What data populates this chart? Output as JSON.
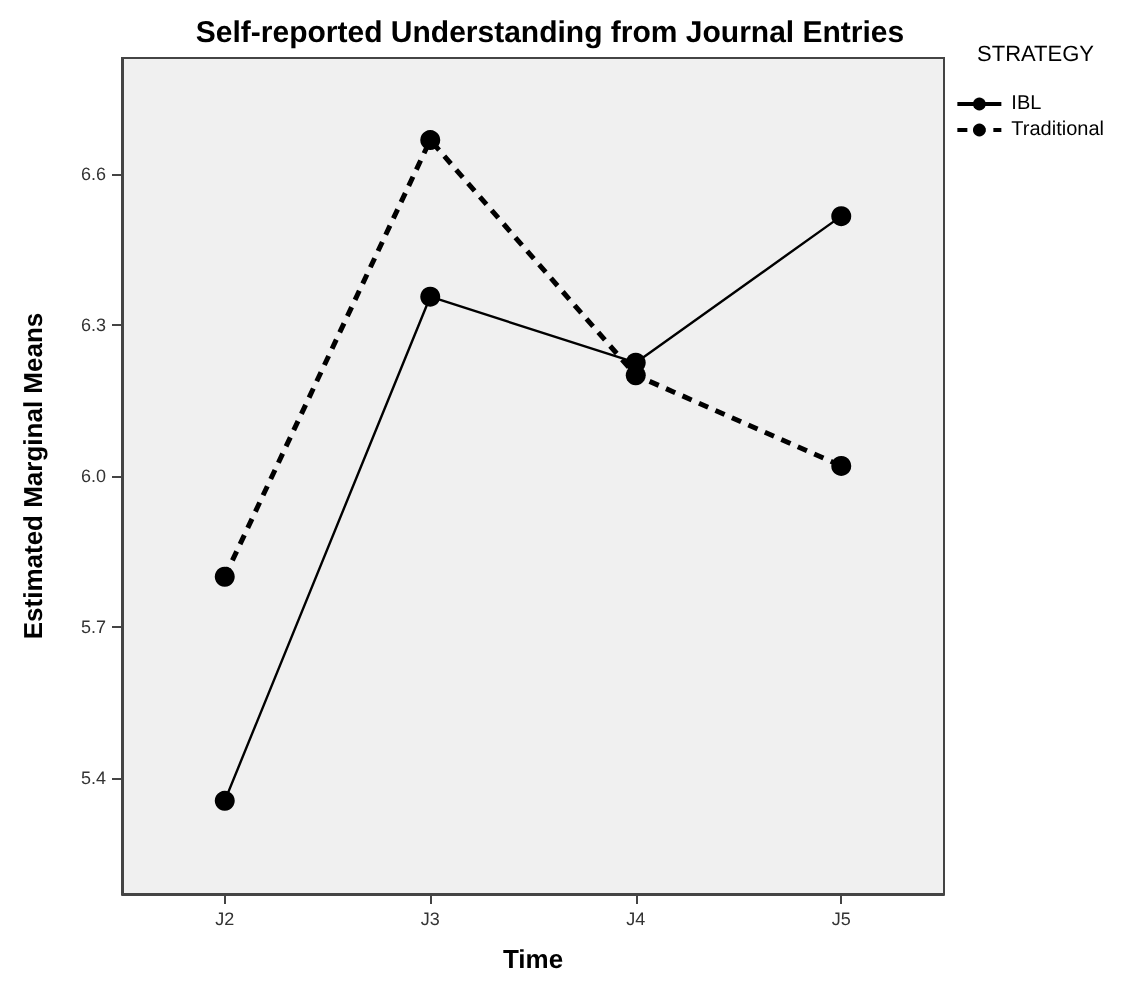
{
  "chart_data": {
    "type": "line",
    "title": "Self-reported Understanding from Journal Entries",
    "xlabel": "Time",
    "ylabel": "Estimated Marginal Means",
    "legend_title": "STRATEGY",
    "categories": [
      "J2",
      "J3",
      "J4",
      "J5"
    ],
    "series": [
      {
        "name": "IBL",
        "color": "#000000",
        "line_style": "solid",
        "values": [
          5.355,
          6.356,
          6.225,
          6.516
        ]
      },
      {
        "name": "Traditional",
        "color": "#000000",
        "line_style": "dashed",
        "values": [
          5.8,
          6.667,
          6.2,
          6.02
        ]
      }
    ],
    "ylim": [
      5.17,
      6.83
    ],
    "yticks": [
      {
        "value": 5.4,
        "label": "5.4"
      },
      {
        "value": 5.7,
        "label": "5.7"
      },
      {
        "value": 6.0,
        "label": "6.0"
      },
      {
        "value": 6.3,
        "label": "6.3"
      },
      {
        "value": 6.6,
        "label": "6.6"
      }
    ],
    "grid": false,
    "legend": "top right",
    "marker": "circle"
  }
}
